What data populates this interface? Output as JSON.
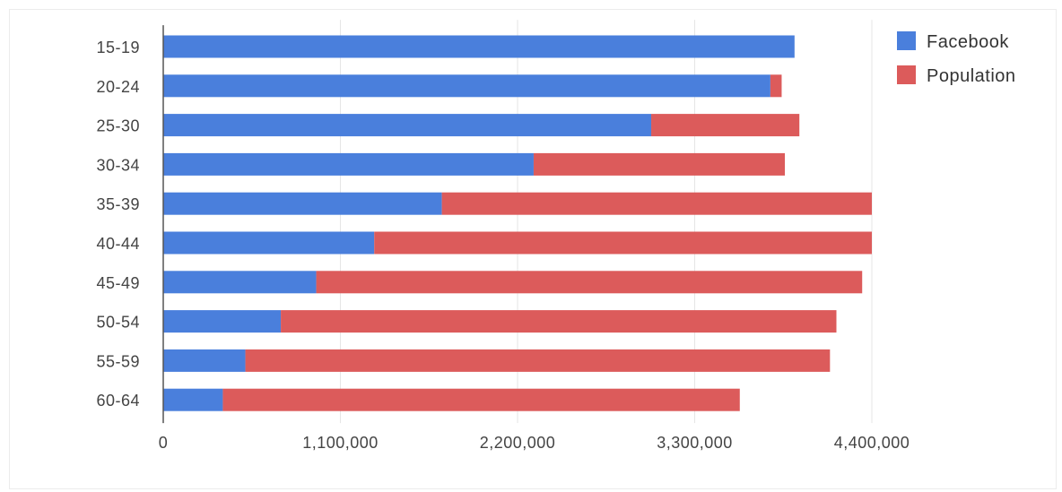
{
  "chart_data": {
    "type": "bar",
    "orientation": "horizontal",
    "stacked": true,
    "categories": [
      "15-19",
      "20-24",
      "25-30",
      "30-34",
      "35-39",
      "40-44",
      "45-49",
      "50-54",
      "55-59",
      "60-64"
    ],
    "series": [
      {
        "name": "Facebook",
        "color": "#4a7fdc",
        "values": [
          3920000,
          3770000,
          3030000,
          2300000,
          1730000,
          1310000,
          950000,
          730000,
          510000,
          370000
        ]
      },
      {
        "name": "Population",
        "color": "#dc5b5b",
        "values": [
          0,
          70000,
          920000,
          1560000,
          2670000,
          3090000,
          3390000,
          3450000,
          3630000,
          3210000
        ]
      }
    ],
    "xlim": [
      0,
      4400000
    ],
    "xticks": [
      0,
      1100000,
      2200000,
      3300000,
      4400000
    ],
    "xtick_labels": [
      "0",
      "1,100,000",
      "2,200,000",
      "3,300,000",
      "4,400,000"
    ],
    "grid": true,
    "legend_position": "right",
    "title": "",
    "xlabel": "",
    "ylabel": ""
  }
}
